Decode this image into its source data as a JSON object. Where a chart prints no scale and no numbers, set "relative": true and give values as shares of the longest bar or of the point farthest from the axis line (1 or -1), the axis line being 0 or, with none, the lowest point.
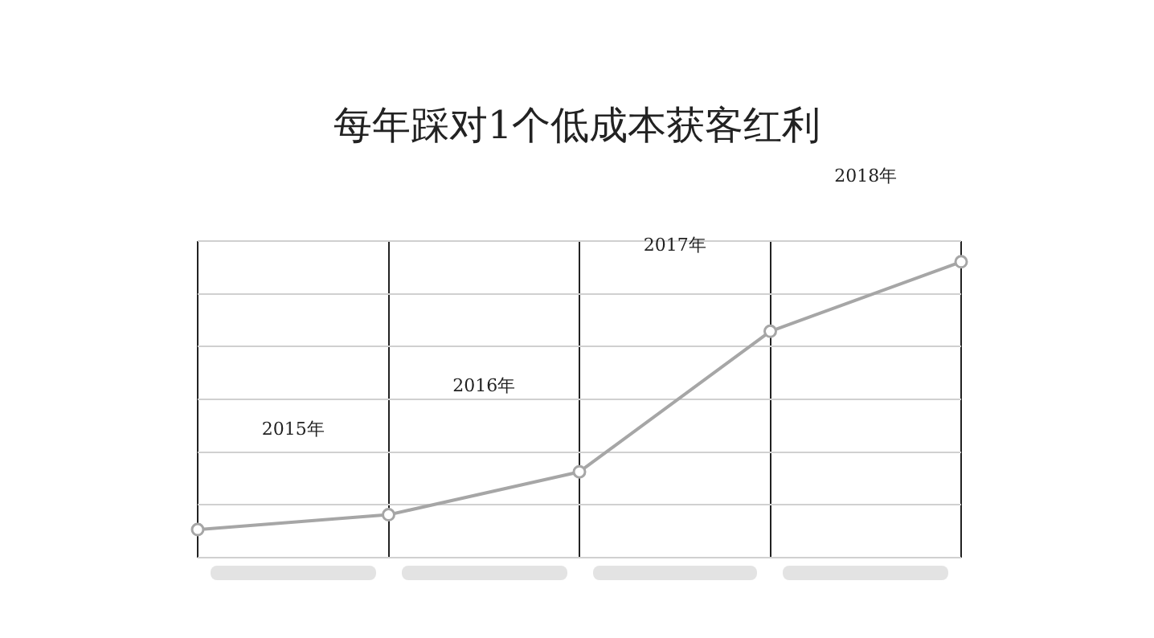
{
  "chart_data": {
    "type": "line",
    "title": "每年踩对1个低成本获客红利",
    "relative": true,
    "categories": [
      null,
      null,
      null,
      null,
      null
    ],
    "series": [
      {
        "color": "#a6a6a6",
        "values": [
          0.095,
          0.145,
          0.29,
          0.765,
          1
        ]
      }
    ],
    "annotations": [
      "2015年",
      "2016年",
      "2017年",
      "2018年"
    ],
    "grid": true,
    "marker": "circle",
    "line_style": "solid",
    "legend": false
  }
}
